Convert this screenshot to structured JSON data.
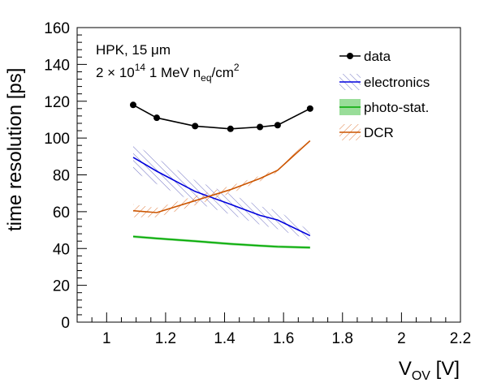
{
  "chart_data": {
    "type": "line",
    "annotation": {
      "line1": "HPK, 15 μm",
      "line2_prefix": "2 × 10",
      "line2_exp": "14",
      "line2_mid": " 1 MeV n",
      "line2_sub": "eq",
      "line2_unit": "/cm",
      "line2_unit_exp": "2"
    },
    "xlabel_main": "V",
    "xlabel_sub": "OV",
    "xlabel_unit": " [V]",
    "ylabel": "time resolution [ps]",
    "xlim": [
      0.9,
      2.2
    ],
    "ylim": [
      0,
      160
    ],
    "x_ticks": [
      1,
      1.2,
      1.4,
      1.6,
      1.8,
      2,
      2.2
    ],
    "x_tick_labels": [
      "1",
      "1.2",
      "1.4",
      "1.6",
      "1.8",
      "2",
      "2.2"
    ],
    "y_ticks": [
      0,
      20,
      40,
      60,
      80,
      100,
      120,
      140,
      160
    ],
    "y_tick_labels": [
      "0",
      "20",
      "40",
      "60",
      "80",
      "100",
      "120",
      "140",
      "160"
    ],
    "legend_position": "top-right",
    "series": [
      {
        "name": "data",
        "style": "markers+line",
        "color": "#000000",
        "x": [
          1.09,
          1.17,
          1.3,
          1.42,
          1.52,
          1.58,
          1.69
        ],
        "y": [
          118,
          111,
          106.5,
          105,
          106,
          107,
          116
        ]
      },
      {
        "name": "electronics",
        "style": "line+hatched-band",
        "color": "#0000dd",
        "band_color": "#7d80c8",
        "x": [
          1.09,
          1.17,
          1.3,
          1.42,
          1.52,
          1.58,
          1.69
        ],
        "y": [
          89.5,
          82,
          71,
          64,
          58,
          55.5,
          47
        ],
        "band_lo": [
          82,
          75,
          65,
          58.5,
          53,
          50.5,
          44.5
        ],
        "band_hi": [
          97,
          89,
          77,
          69.5,
          63,
          60.5,
          49.5
        ]
      },
      {
        "name": "photo-stat.",
        "style": "line+filled-band",
        "color": "#00aa00",
        "band_color": "#99dd99",
        "x": [
          1.09,
          1.17,
          1.3,
          1.42,
          1.52,
          1.58,
          1.69
        ],
        "y": [
          46.5,
          45.5,
          44,
          42.5,
          41.5,
          41,
          40.5
        ],
        "band_lo": [
          45.8,
          44.8,
          43.3,
          41.8,
          40.8,
          40.3,
          39.8
        ],
        "band_hi": [
          47.2,
          46.2,
          44.7,
          43.2,
          42.2,
          41.7,
          41.2
        ]
      },
      {
        "name": "DCR",
        "style": "line+hatched-band",
        "color": "#cc5500",
        "band_color": "#e08a50",
        "x": [
          1.09,
          1.17,
          1.3,
          1.42,
          1.52,
          1.58,
          1.69
        ],
        "y": [
          60.5,
          59.5,
          66,
          72,
          78,
          82.5,
          98.5
        ],
        "band_lo": [
          57,
          57,
          63.5,
          70,
          76.5,
          81.5,
          97.5
        ],
        "band_hi": [
          64,
          62,
          68.5,
          74,
          79.5,
          83.5,
          99.5
        ]
      }
    ]
  }
}
